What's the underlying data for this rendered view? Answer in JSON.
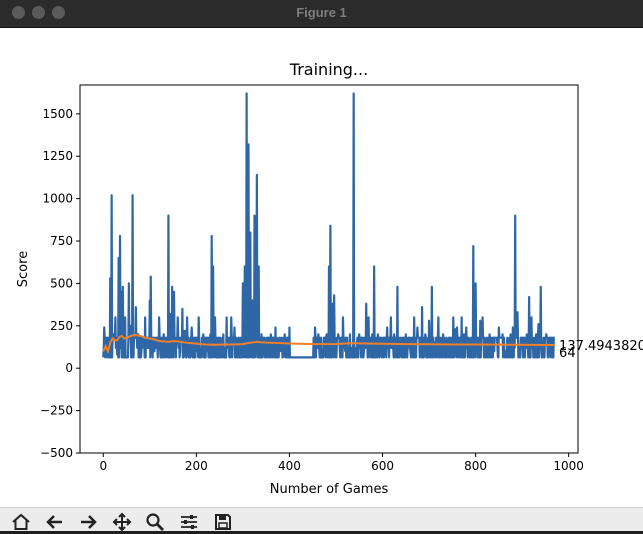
{
  "window": {
    "title": "Figure 1"
  },
  "toolbar": {
    "buttons": [
      {
        "name": "home-button",
        "icon": "home-icon"
      },
      {
        "name": "back-button",
        "icon": "arrow-left-icon"
      },
      {
        "name": "forward-button",
        "icon": "arrow-right-icon"
      },
      {
        "name": "pan-button",
        "icon": "move-icon"
      },
      {
        "name": "zoom-button",
        "icon": "magnifier-icon"
      },
      {
        "name": "configure-subplots-button",
        "icon": "sliders-icon"
      },
      {
        "name": "save-button",
        "icon": "floppy-icon"
      }
    ]
  },
  "chart_data": {
    "type": "line",
    "title": "Training...",
    "xlabel": "Number of Games",
    "ylabel": "Score",
    "xlim": [
      -50,
      1020
    ],
    "ylim": [
      -500,
      1670
    ],
    "xticks": [
      0,
      200,
      400,
      600,
      800,
      1000
    ],
    "yticks": [
      -500,
      -250,
      0,
      250,
      500,
      750,
      1000,
      1250,
      1500
    ],
    "grid": false,
    "colors": {
      "score": "#2f67a6",
      "mean": "#ef7f28"
    },
    "annotations": [
      {
        "text": "137.4943820",
        "x": 975,
        "y": 137
      },
      {
        "text": "64",
        "x": 975,
        "y": 96
      }
    ],
    "score_spikes": [
      [
        2,
        240
      ],
      [
        10,
        100
      ],
      [
        12,
        180
      ],
      [
        15,
        530
      ],
      [
        18,
        1020
      ],
      [
        22,
        200
      ],
      [
        26,
        300
      ],
      [
        30,
        80
      ],
      [
        33,
        650
      ],
      [
        36,
        780
      ],
      [
        39,
        450
      ],
      [
        42,
        480
      ],
      [
        47,
        300
      ],
      [
        55,
        500
      ],
      [
        58,
        250
      ],
      [
        63,
        1020
      ],
      [
        70,
        360
      ],
      [
        75,
        200
      ],
      [
        82,
        100
      ],
      [
        90,
        300
      ],
      [
        100,
        400
      ],
      [
        102,
        540
      ],
      [
        110,
        100
      ],
      [
        120,
        300
      ],
      [
        130,
        200
      ],
      [
        140,
        900
      ],
      [
        145,
        320
      ],
      [
        148,
        480
      ],
      [
        152,
        450
      ],
      [
        160,
        300
      ],
      [
        165,
        100
      ],
      [
        170,
        350
      ],
      [
        175,
        220
      ],
      [
        180,
        300
      ],
      [
        190,
        240
      ],
      [
        200,
        100
      ],
      [
        205,
        300
      ],
      [
        215,
        200
      ],
      [
        222,
        100
      ],
      [
        230,
        200
      ],
      [
        233,
        780
      ],
      [
        236,
        600
      ],
      [
        240,
        300
      ],
      [
        250,
        100
      ],
      [
        258,
        200
      ],
      [
        265,
        300
      ],
      [
        270,
        100
      ],
      [
        275,
        300
      ],
      [
        282,
        240
      ],
      [
        290,
        100
      ],
      [
        300,
        500
      ],
      [
        304,
        600
      ],
      [
        308,
        1620
      ],
      [
        310,
        300
      ],
      [
        312,
        1320
      ],
      [
        316,
        800
      ],
      [
        320,
        400
      ],
      [
        325,
        900
      ],
      [
        330,
        1140
      ],
      [
        334,
        600
      ],
      [
        340,
        200
      ],
      [
        350,
        100
      ],
      [
        360,
        200
      ],
      [
        370,
        240
      ],
      [
        380,
        100
      ],
      [
        390,
        200
      ],
      [
        400,
        240
      ],
      [
        455,
        240
      ],
      [
        462,
        200
      ],
      [
        470,
        100
      ],
      [
        480,
        200
      ],
      [
        485,
        600
      ],
      [
        488,
        840
      ],
      [
        492,
        380
      ],
      [
        496,
        430
      ],
      [
        505,
        200
      ],
      [
        515,
        300
      ],
      [
        520,
        100
      ],
      [
        530,
        200
      ],
      [
        538,
        1620
      ],
      [
        545,
        150
      ],
      [
        550,
        200
      ],
      [
        560,
        100
      ],
      [
        565,
        380
      ],
      [
        570,
        300
      ],
      [
        578,
        200
      ],
      [
        582,
        600
      ],
      [
        590,
        200
      ],
      [
        600,
        100
      ],
      [
        610,
        240
      ],
      [
        618,
        300
      ],
      [
        625,
        200
      ],
      [
        632,
        480
      ],
      [
        640,
        150
      ],
      [
        650,
        200
      ],
      [
        660,
        100
      ],
      [
        668,
        300
      ],
      [
        675,
        240
      ],
      [
        685,
        360
      ],
      [
        692,
        200
      ],
      [
        700,
        280
      ],
      [
        706,
        480
      ],
      [
        712,
        150
      ],
      [
        720,
        300
      ],
      [
        730,
        200
      ],
      [
        740,
        100
      ],
      [
        752,
        300
      ],
      [
        756,
        230
      ],
      [
        760,
        240
      ],
      [
        770,
        300
      ],
      [
        775,
        200
      ],
      [
        780,
        240
      ],
      [
        790,
        180
      ],
      [
        795,
        720
      ],
      [
        800,
        500
      ],
      [
        810,
        280
      ],
      [
        815,
        300
      ],
      [
        822,
        150
      ],
      [
        830,
        200
      ],
      [
        840,
        100
      ],
      [
        850,
        240
      ],
      [
        858,
        200
      ],
      [
        865,
        100
      ],
      [
        875,
        200
      ],
      [
        880,
        240
      ],
      [
        885,
        900
      ],
      [
        890,
        330
      ],
      [
        900,
        120
      ],
      [
        910,
        200
      ],
      [
        915,
        420
      ],
      [
        920,
        300
      ],
      [
        930,
        200
      ],
      [
        935,
        260
      ],
      [
        940,
        480
      ],
      [
        945,
        100
      ],
      [
        952,
        200
      ],
      [
        960,
        100
      ],
      [
        968,
        180
      ]
    ],
    "mean_line": [
      [
        0,
        100
      ],
      [
        5,
        130
      ],
      [
        10,
        100
      ],
      [
        15,
        150
      ],
      [
        20,
        175
      ],
      [
        25,
        165
      ],
      [
        30,
        165
      ],
      [
        35,
        185
      ],
      [
        40,
        190
      ],
      [
        45,
        175
      ],
      [
        50,
        180
      ],
      [
        55,
        185
      ],
      [
        60,
        190
      ],
      [
        65,
        195
      ],
      [
        70,
        195
      ],
      [
        80,
        190
      ],
      [
        90,
        180
      ],
      [
        100,
        175
      ],
      [
        110,
        170
      ],
      [
        120,
        160
      ],
      [
        130,
        158
      ],
      [
        140,
        155
      ],
      [
        150,
        160
      ],
      [
        160,
        158
      ],
      [
        180,
        150
      ],
      [
        200,
        145
      ],
      [
        220,
        140
      ],
      [
        240,
        138
      ],
      [
        260,
        140
      ],
      [
        280,
        140
      ],
      [
        300,
        142
      ],
      [
        310,
        148
      ],
      [
        320,
        152
      ],
      [
        330,
        155
      ],
      [
        340,
        152
      ],
      [
        360,
        150
      ],
      [
        380,
        148
      ],
      [
        400,
        146
      ],
      [
        450,
        142
      ],
      [
        500,
        143
      ],
      [
        538,
        148
      ],
      [
        560,
        146
      ],
      [
        600,
        144
      ],
      [
        650,
        142
      ],
      [
        700,
        141
      ],
      [
        750,
        140
      ],
      [
        800,
        140
      ],
      [
        850,
        139
      ],
      [
        900,
        138
      ],
      [
        950,
        137
      ],
      [
        970,
        137
      ]
    ]
  }
}
